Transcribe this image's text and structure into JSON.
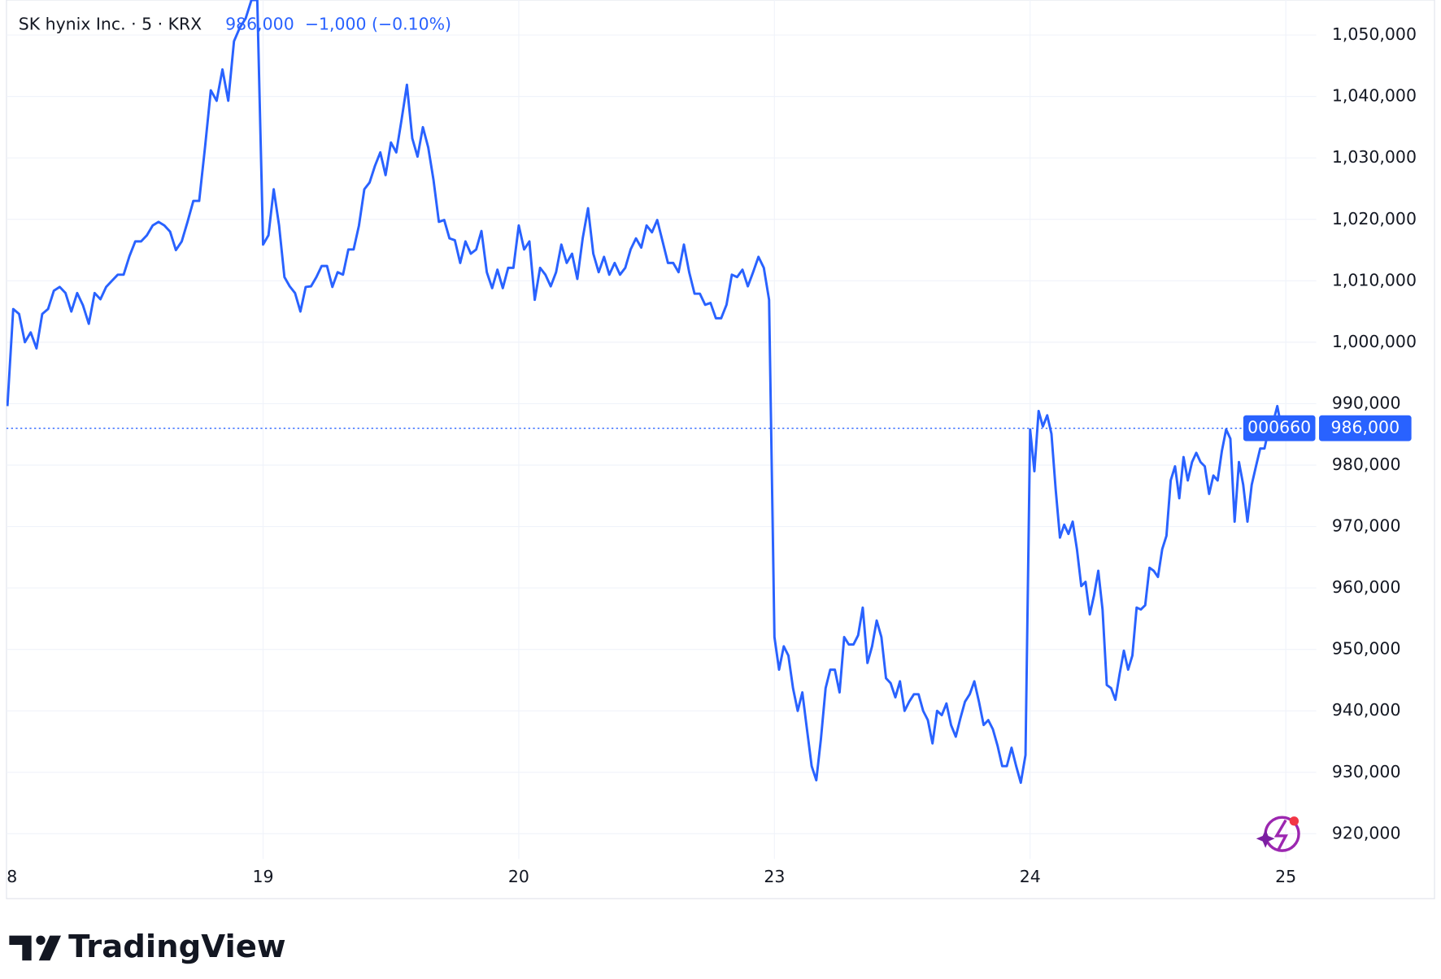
{
  "chart_data": {
    "type": "line",
    "title": "SK hynix Inc. · 5 · KRX",
    "header_price": "986,000",
    "header_change": "−1,000 (−0.10%)",
    "symbol": "000660",
    "last_price": {
      "value": 986000,
      "label": "986,000"
    },
    "ylim": [
      915900,
      1055700
    ],
    "yticks": [
      {
        "value": 920000,
        "label": "920,000"
      },
      {
        "value": 930000,
        "label": "930,000"
      },
      {
        "value": 940000,
        "label": "940,000"
      },
      {
        "value": 950000,
        "label": "950,000"
      },
      {
        "value": 960000,
        "label": "960,000"
      },
      {
        "value": 970000,
        "label": "970,000"
      },
      {
        "value": 980000,
        "label": "980,000"
      },
      {
        "value": 990000,
        "label": "990,000"
      },
      {
        "value": 1000000,
        "label": "1,000,000"
      },
      {
        "value": 1010000,
        "label": "1,010,000"
      },
      {
        "value": 1020000,
        "label": "1,020,000"
      },
      {
        "value": 1030000,
        "label": "1,030,000"
      },
      {
        "value": 1040000,
        "label": "1,040,000"
      },
      {
        "value": 1050000,
        "label": "1,050,000"
      }
    ],
    "grid": true,
    "categories": [
      "8",
      null,
      null,
      null,
      null,
      null,
      null,
      null,
      null,
      null,
      null,
      null,
      null,
      null,
      null,
      null,
      null,
      null,
      null,
      null,
      null,
      null,
      null,
      null,
      null,
      null,
      null,
      null,
      null,
      null,
      null,
      null,
      null,
      null,
      null,
      null,
      null,
      null,
      null,
      null,
      null,
      null,
      null,
      null,
      "19",
      null,
      null,
      null,
      null,
      null,
      null,
      null,
      null,
      null,
      null,
      null,
      null,
      null,
      null,
      null,
      null,
      null,
      null,
      null,
      null,
      null,
      null,
      null,
      null,
      null,
      null,
      null,
      null,
      null,
      null,
      null,
      null,
      null,
      null,
      null,
      null,
      null,
      null,
      null,
      null,
      null,
      null,
      null,
      null,
      null,
      null,
      null,
      "20",
      null,
      null,
      null,
      null,
      null,
      null,
      null,
      null,
      null,
      null,
      null,
      null,
      null,
      null,
      null,
      null,
      null,
      null,
      null,
      null,
      null,
      null,
      null,
      null,
      null,
      null,
      null,
      null,
      null,
      null,
      null,
      null,
      null,
      null,
      null,
      null,
      null,
      null,
      null,
      null,
      null,
      null,
      null,
      null,
      null,
      null,
      null,
      "23",
      null,
      null,
      null,
      null,
      null,
      null,
      null,
      null,
      null,
      null,
      null,
      null,
      null,
      null,
      null,
      null,
      null,
      null,
      null,
      null,
      null,
      null,
      null,
      null,
      null,
      null,
      null,
      null,
      null,
      null,
      null,
      null,
      null,
      null,
      null,
      null,
      null,
      null,
      null,
      null,
      null,
      null,
      null,
      null,
      null,
      null,
      null,
      null,
      null,
      null,
      null,
      null,
      null,
      null,
      "24",
      null,
      null,
      null,
      null,
      null,
      null,
      null,
      null,
      null,
      null,
      null,
      null,
      null,
      null,
      null,
      null,
      null,
      null,
      null,
      null,
      null,
      null,
      null,
      null,
      null,
      null,
      null,
      null,
      null,
      null,
      null,
      null,
      null,
      null,
      null,
      null,
      null,
      null,
      null,
      null,
      null,
      null,
      null,
      null,
      null,
      null,
      null,
      null,
      null,
      null,
      null,
      null,
      null,
      null,
      null,
      null,
      null,
      null,
      null,
      "25"
    ],
    "series": [
      {
        "name": "SK hynix Inc.",
        "color": "#2962ff",
        "values": [
          989600,
          1005400,
          1004600,
          1000000,
          1001600,
          999000,
          1004600,
          1005400,
          1008400,
          1009000,
          1008000,
          1005000,
          1008000,
          1006000,
          1003000,
          1008000,
          1007000,
          1009000,
          1010000,
          1011000,
          1011000,
          1014000,
          1016400,
          1016400,
          1017400,
          1019000,
          1019600,
          1019000,
          1018000,
          1015000,
          1016400,
          1019600,
          1023000,
          1023000,
          1031700,
          1041000,
          1039300,
          1044400,
          1039300,
          1049000,
          1051200,
          1052700,
          1055700,
          1055700,
          1015900,
          1017400,
          1024900,
          1019000,
          1010600,
          1009100,
          1008000,
          1005000,
          1009000,
          1009100,
          1010600,
          1012400,
          1012400,
          1009000,
          1011400,
          1011000,
          1015100,
          1015100,
          1019000,
          1024900,
          1026000,
          1028700,
          1030900,
          1027200,
          1032500,
          1030900,
          1036200,
          1041900,
          1033200,
          1030200,
          1035000,
          1031700,
          1026400,
          1019600,
          1019900,
          1016900,
          1016600,
          1012900,
          1016400,
          1014400,
          1015100,
          1018100,
          1011400,
          1008800,
          1011800,
          1008800,
          1012100,
          1012100,
          1019000,
          1015100,
          1016400,
          1006900,
          1012100,
          1011000,
          1009100,
          1011400,
          1015900,
          1012900,
          1014400,
          1010300,
          1016900,
          1021800,
          1014400,
          1011400,
          1013900,
          1011000,
          1012900,
          1011000,
          1012100,
          1015100,
          1016900,
          1015400,
          1019000,
          1017900,
          1019900,
          1016400,
          1012900,
          1012900,
          1011400,
          1015900,
          1011400,
          1007900,
          1007900,
          1006100,
          1006400,
          1003900,
          1003900,
          1006100,
          1011000,
          1010600,
          1011800,
          1009100,
          1011400,
          1013900,
          1012100,
          1006900,
          952000,
          946700,
          950500,
          949000,
          943700,
          940000,
          943000,
          937000,
          931000,
          928700,
          935400,
          943700,
          946700,
          946700,
          943000,
          952000,
          950800,
          950800,
          952300,
          956800,
          947800,
          950500,
          954700,
          952000,
          945300,
          944500,
          942200,
          944800,
          940000,
          941500,
          942700,
          942700,
          940000,
          938500,
          934700,
          940000,
          939300,
          941200,
          937700,
          935800,
          938800,
          941500,
          942700,
          944800,
          941500,
          937700,
          938500,
          937000,
          934300,
          931000,
          931000,
          934000,
          931000,
          928300,
          932800,
          985800,
          979000,
          988800,
          986300,
          988100,
          985100,
          976000,
          968200,
          970300,
          968800,
          970800,
          966300,
          960300,
          961000,
          955700,
          958800,
          962800,
          956500,
          944200,
          943700,
          941800,
          946000,
          949800,
          946700,
          949000,
          956800,
          956500,
          957200,
          963300,
          962800,
          961800,
          966300,
          968500,
          977500,
          979800,
          974600,
          981300,
          977500,
          980500,
          982000,
          980500,
          979800,
          975300,
          978300,
          977500,
          982300,
          985800,
          984300,
          970800,
          980500,
          976800,
          970800,
          976800,
          979800,
          982700,
          982700,
          985800,
          986900,
          989600,
          986000,
          null
        ]
      }
    ]
  },
  "brand": "TradingView"
}
